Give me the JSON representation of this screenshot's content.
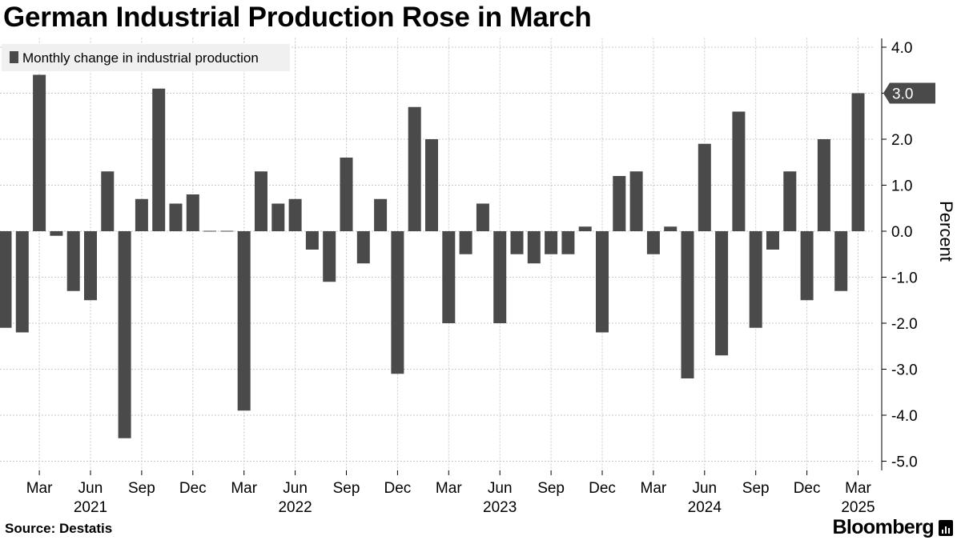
{
  "title": "German Industrial Production Rose in March",
  "source": "Source: Destatis",
  "brand": "Bloomberg",
  "chart_data": {
    "type": "bar",
    "legend": "Monthly change in industrial production",
    "legend_position": "top-left",
    "ylabel": "Percent",
    "y_axis_side": "right",
    "ylim": [
      -5.2,
      4.2
    ],
    "yticks": [
      "4.0",
      "3.0",
      "2.0",
      "1.0",
      "0.0",
      "-1.0",
      "-2.0",
      "-3.0",
      "-4.0",
      "-5.0"
    ],
    "ytick_values": [
      4,
      3,
      2,
      1,
      0,
      -1,
      -2,
      -3,
      -4,
      -5
    ],
    "grid": true,
    "bar_color": "#4a4a4a",
    "last_value_label": "3.0",
    "categories": [
      "2021-01",
      "2021-02",
      "2021-03",
      "2021-04",
      "2021-05",
      "2021-06",
      "2021-07",
      "2021-08",
      "2021-09",
      "2021-10",
      "2021-11",
      "2021-12",
      "2022-01",
      "2022-02",
      "2022-03",
      "2022-04",
      "2022-05",
      "2022-06",
      "2022-07",
      "2022-08",
      "2022-09",
      "2022-10",
      "2022-11",
      "2022-12",
      "2023-01",
      "2023-02",
      "2023-03",
      "2023-04",
      "2023-05",
      "2023-06",
      "2023-07",
      "2023-08",
      "2023-09",
      "2023-10",
      "2023-11",
      "2023-12",
      "2024-01",
      "2024-02",
      "2024-03",
      "2024-04",
      "2024-05",
      "2024-06",
      "2024-07",
      "2024-08",
      "2024-09",
      "2024-10",
      "2024-11",
      "2024-12",
      "2025-01",
      "2025-02",
      "2025-03"
    ],
    "values": [
      -2.1,
      -2.2,
      3.4,
      -0.1,
      -1.3,
      -1.5,
      1.3,
      -4.5,
      0.7,
      3.1,
      0.6,
      0.8,
      0.0,
      0.0,
      -3.9,
      1.3,
      0.6,
      0.7,
      -0.4,
      -1.1,
      1.6,
      -0.7,
      0.7,
      -3.1,
      2.7,
      2.0,
      -2.0,
      -0.5,
      0.6,
      -2.0,
      -0.5,
      -0.7,
      -0.5,
      -0.5,
      0.1,
      -2.2,
      1.2,
      1.3,
      -0.5,
      0.1,
      -3.2,
      1.9,
      -2.7,
      2.6,
      -2.1,
      -0.4,
      1.3,
      -1.5,
      2.0,
      -1.3,
      3.0
    ],
    "month_ticks": [
      {
        "index": 2,
        "label": "Mar"
      },
      {
        "index": 5,
        "label": "Jun"
      },
      {
        "index": 8,
        "label": "Sep"
      },
      {
        "index": 11,
        "label": "Dec"
      },
      {
        "index": 14,
        "label": "Mar"
      },
      {
        "index": 17,
        "label": "Jun"
      },
      {
        "index": 20,
        "label": "Sep"
      },
      {
        "index": 23,
        "label": "Dec"
      },
      {
        "index": 26,
        "label": "Mar"
      },
      {
        "index": 29,
        "label": "Jun"
      },
      {
        "index": 32,
        "label": "Sep"
      },
      {
        "index": 35,
        "label": "Dec"
      },
      {
        "index": 38,
        "label": "Mar"
      },
      {
        "index": 41,
        "label": "Jun"
      },
      {
        "index": 44,
        "label": "Sep"
      },
      {
        "index": 47,
        "label": "Dec"
      },
      {
        "index": 50,
        "label": "Mar"
      }
    ],
    "year_labels": [
      {
        "index": 5,
        "label": "2021"
      },
      {
        "index": 17,
        "label": "2022"
      },
      {
        "index": 29,
        "label": "2023"
      },
      {
        "index": 41,
        "label": "2024"
      },
      {
        "index": 50,
        "label": "2025"
      }
    ]
  }
}
